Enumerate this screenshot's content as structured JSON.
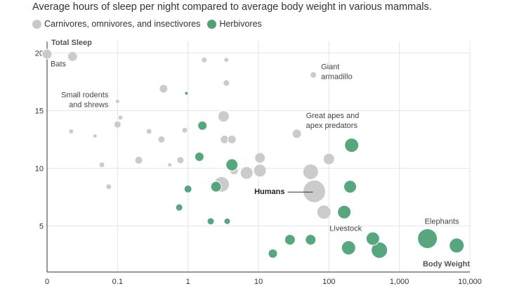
{
  "title": "Average hours of sleep per night compared to average body weight in various mammals.",
  "legend": [
    {
      "label": "Carnivores, omnivores, and insectivores",
      "color": "#c8c8c8"
    },
    {
      "label": "Herbivores",
      "color": "#4ea277"
    }
  ],
  "chart_data": {
    "type": "scatter",
    "title": "Average hours of sleep per night compared to average body weight in various mammals.",
    "xlabel": "Body Weight",
    "ylabel": "Total Sleep",
    "x_scale": "log",
    "xlim": [
      0.01,
      10000
    ],
    "ylim": [
      1,
      21
    ],
    "x_ticks": [
      {
        "value": 0.01,
        "label": "0"
      },
      {
        "value": 0.1,
        "label": "0.1"
      },
      {
        "value": 1,
        "label": "1"
      },
      {
        "value": 10,
        "label": "10"
      },
      {
        "value": 100,
        "label": "100"
      },
      {
        "value": 1000,
        "label": "1,000"
      },
      {
        "value": 10000,
        "label": "10,000"
      }
    ],
    "y_ticks": [
      {
        "value": 5,
        "label": "5"
      },
      {
        "value": 10,
        "label": "10"
      },
      {
        "value": 15,
        "label": "15"
      },
      {
        "value": 20,
        "label": "20"
      }
    ],
    "grid": true,
    "legend_position": "top-left",
    "series": [
      {
        "name": "Carnivores, omnivores, and insectivores",
        "color": "#c8c8c8",
        "points": [
          {
            "x": 0.01,
            "y": 19.9,
            "r": 7
          },
          {
            "x": 0.023,
            "y": 19.7,
            "r": 7
          },
          {
            "x": 1.7,
            "y": 19.4,
            "r": 4
          },
          {
            "x": 3.5,
            "y": 19.4,
            "r": 3.5
          },
          {
            "x": 60,
            "y": 18.1,
            "r": 4.5
          },
          {
            "x": 3.5,
            "y": 17.4,
            "r": 4.5
          },
          {
            "x": 0.45,
            "y": 16.9,
            "r": 6
          },
          {
            "x": 0.1,
            "y": 15.8,
            "r": 3
          },
          {
            "x": 0.11,
            "y": 14.4,
            "r": 3.5
          },
          {
            "x": 3.2,
            "y": 14.5,
            "r": 8
          },
          {
            "x": 0.1,
            "y": 13.8,
            "r": 5
          },
          {
            "x": 0.022,
            "y": 13.2,
            "r": 3.5
          },
          {
            "x": 0.28,
            "y": 13.2,
            "r": 4
          },
          {
            "x": 0.9,
            "y": 13.3,
            "r": 4
          },
          {
            "x": 0.048,
            "y": 12.8,
            "r": 3
          },
          {
            "x": 35,
            "y": 13.0,
            "r": 6.5
          },
          {
            "x": 0.42,
            "y": 12.5,
            "r": 5
          },
          {
            "x": 3.3,
            "y": 12.5,
            "r": 6
          },
          {
            "x": 4.2,
            "y": 12.5,
            "r": 6
          },
          {
            "x": 0.2,
            "y": 10.7,
            "r": 5.5
          },
          {
            "x": 0.78,
            "y": 10.7,
            "r": 5
          },
          {
            "x": 10.5,
            "y": 10.9,
            "r": 7.5
          },
          {
            "x": 100,
            "y": 10.8,
            "r": 8
          },
          {
            "x": 0.06,
            "y": 10.3,
            "r": 4
          },
          {
            "x": 0.55,
            "y": 10.3,
            "r": 3
          },
          {
            "x": 4.5,
            "y": 9.8,
            "r": 6
          },
          {
            "x": 6.8,
            "y": 9.6,
            "r": 9
          },
          {
            "x": 10.5,
            "y": 9.8,
            "r": 9
          },
          {
            "x": 55,
            "y": 9.7,
            "r": 11
          },
          {
            "x": 0.075,
            "y": 8.4,
            "r": 4
          },
          {
            "x": 3.0,
            "y": 8.6,
            "r": 11
          },
          {
            "x": 62,
            "y": 8.0,
            "r": 16
          },
          {
            "x": 85,
            "y": 6.2,
            "r": 10
          }
        ]
      },
      {
        "name": "Herbivores",
        "color": "#4ea277",
        "points": [
          {
            "x": 0.95,
            "y": 16.5,
            "r": 2.5
          },
          {
            "x": 1.6,
            "y": 13.7,
            "r": 6.5
          },
          {
            "x": 210,
            "y": 12.0,
            "r": 10
          },
          {
            "x": 1.45,
            "y": 11.0,
            "r": 6.5
          },
          {
            "x": 4.2,
            "y": 10.3,
            "r": 8.5
          },
          {
            "x": 1.0,
            "y": 8.2,
            "r": 5.5
          },
          {
            "x": 2.5,
            "y": 8.4,
            "r": 7.5
          },
          {
            "x": 200,
            "y": 8.4,
            "r": 9
          },
          {
            "x": 0.75,
            "y": 6.6,
            "r": 5
          },
          {
            "x": 165,
            "y": 6.2,
            "r": 9.5
          },
          {
            "x": 2.1,
            "y": 5.4,
            "r": 5
          },
          {
            "x": 3.6,
            "y": 5.4,
            "r": 4.5
          },
          {
            "x": 28,
            "y": 3.8,
            "r": 7.5
          },
          {
            "x": 55,
            "y": 3.8,
            "r": 7.5
          },
          {
            "x": 420,
            "y": 3.9,
            "r": 9.5
          },
          {
            "x": 2500,
            "y": 3.9,
            "r": 14
          },
          {
            "x": 190,
            "y": 3.1,
            "r": 10
          },
          {
            "x": 520,
            "y": 2.9,
            "r": 11.5
          },
          {
            "x": 6500,
            "y": 3.3,
            "r": 10.5
          },
          {
            "x": 16,
            "y": 2.6,
            "r": 6.5
          }
        ]
      }
    ],
    "annotations": [
      {
        "lines": [
          "Bats"
        ],
        "x": 0.01,
        "y": 20,
        "dx": 5,
        "dy": 19,
        "anchor": "start",
        "bold": false
      },
      {
        "lines": [
          "Giant",
          "armadillo"
        ],
        "x": 60,
        "y": 18.1,
        "dx": 11,
        "dy": -8,
        "anchor": "start",
        "bold": false
      },
      {
        "lines": [
          "Small rodents",
          "and shrews"
        ],
        "x": 0.1,
        "y": 15.8,
        "dx": -13,
        "dy": -6,
        "anchor": "end",
        "bold": false
      },
      {
        "lines": [
          "Great apes and",
          "apex predators"
        ],
        "x": 35,
        "y": 13.0,
        "dx": 13,
        "dy": -22,
        "anchor": "start",
        "bold": false
      },
      {
        "lines": [
          "Humans"
        ],
        "x": 62,
        "y": 8.0,
        "dx": -42,
        "dy": 4,
        "anchor": "end",
        "bold": true
      },
      {
        "lines": [
          "Livestock"
        ],
        "x": 190,
        "y": 3.1,
        "dx": -27,
        "dy": -24,
        "anchor": "start",
        "bold": false
      },
      {
        "lines": [
          "Elephants"
        ],
        "x": 2500,
        "y": 3.9,
        "dx": -4,
        "dy": -21,
        "anchor": "start",
        "bold": false
      }
    ]
  }
}
